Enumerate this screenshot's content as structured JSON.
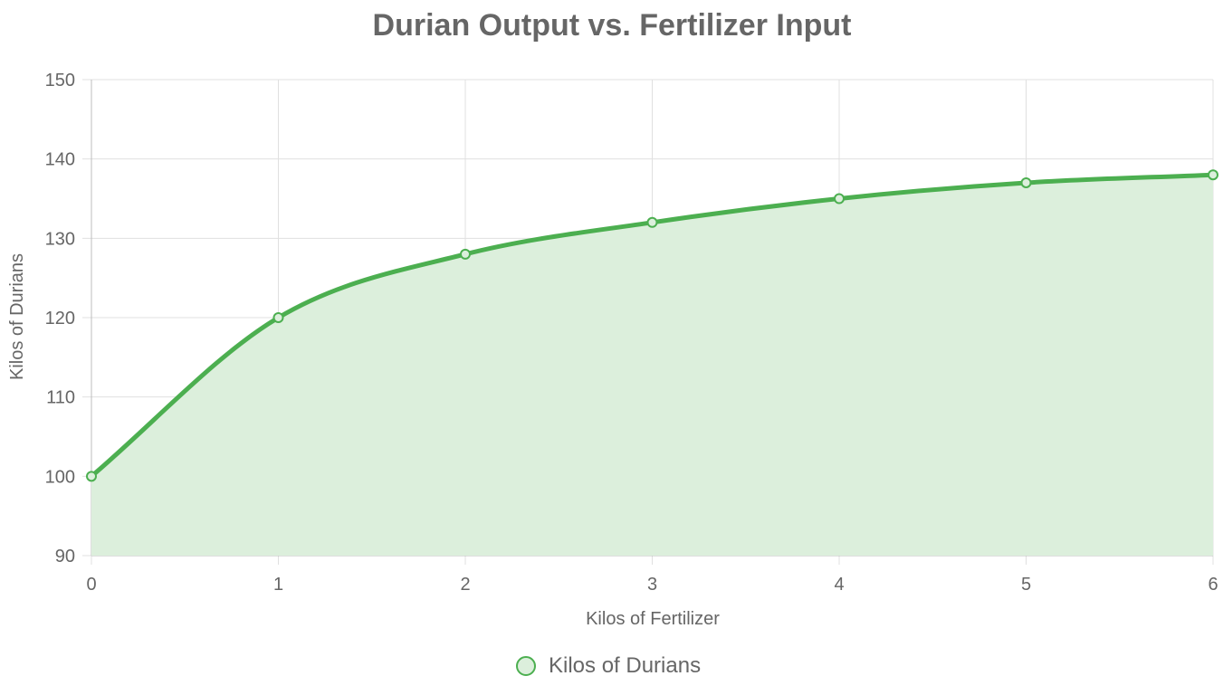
{
  "chart_data": {
    "type": "area",
    "title": "Durian Output vs. Fertilizer Input",
    "xlabel": "Kilos of Fertilizer",
    "ylabel": "Kilos of Durians",
    "x": [
      0,
      1,
      2,
      3,
      4,
      5,
      6
    ],
    "x_tick_labels": [
      "0",
      "1",
      "2",
      "3",
      "4",
      "5",
      "6"
    ],
    "y_tick_labels": [
      "90",
      "100",
      "110",
      "120",
      "130",
      "140",
      "150"
    ],
    "xlim": [
      0,
      6
    ],
    "ylim": [
      90,
      150
    ],
    "y_ticks": [
      90,
      100,
      110,
      120,
      130,
      140,
      150
    ],
    "grid": true,
    "smooth": true,
    "legend_position": "bottom",
    "series": [
      {
        "name": "Kilos of Durians",
        "values": [
          100,
          120,
          128,
          132,
          135,
          137,
          138
        ],
        "line_color": "#4caf50",
        "fill_color": "#dcefdc"
      }
    ]
  },
  "colors": {
    "text": "#666666",
    "grid": "#e0e0e0",
    "axis": "#bdbdbd"
  }
}
